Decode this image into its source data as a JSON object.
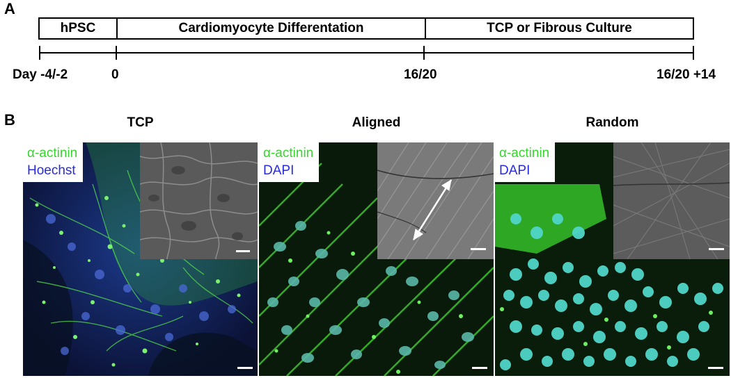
{
  "panels": {
    "a": "A",
    "b": "B"
  },
  "timeline": {
    "stages": [
      "hPSC",
      "Cardiomyocyte Differentation",
      "TCP or Fibrous Culture"
    ],
    "days": {
      "d0": "Day -4/-2",
      "d1": "0",
      "d2": "16/20",
      "d3": "16/20 +14"
    }
  },
  "images": [
    {
      "title": "TCP",
      "stain1": "α-actinin",
      "stain2": "Hoechst"
    },
    {
      "title": "Aligned",
      "stain1": "α-actinin",
      "stain2": "DAPI"
    },
    {
      "title": "Random",
      "stain1": "α-actinin",
      "stain2": "DAPI"
    }
  ],
  "colors": {
    "actinin_green": "#39d42f",
    "nuclear_blue": "#2a2ae0",
    "nuclei_cyan": "#4fd6c8"
  }
}
